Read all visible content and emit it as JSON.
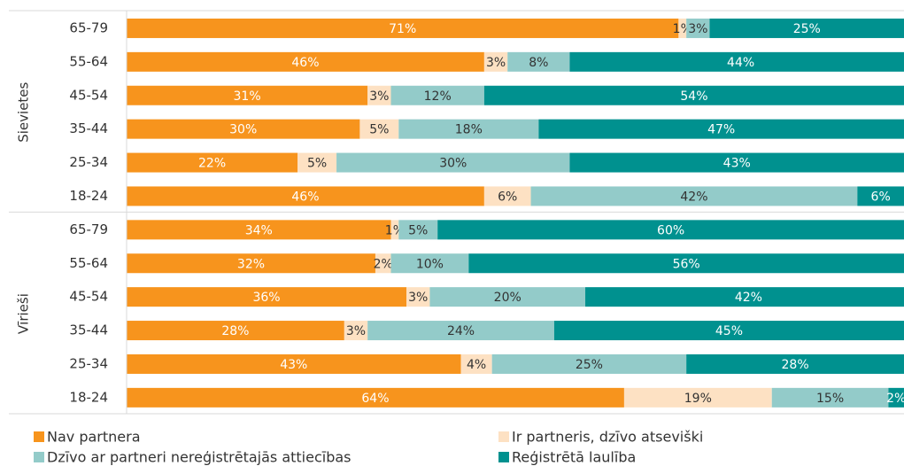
{
  "chart_data": {
    "type": "stacked-bar-horizontal",
    "groups": [
      {
        "name": "Sievietes",
        "categories": [
          "65-79",
          "55-64",
          "45-54",
          "35-44",
          "25-34",
          "18-24"
        ]
      },
      {
        "name": "Vīrieši",
        "categories": [
          "65-79",
          "55-64",
          "45-54",
          "35-44",
          "25-34",
          "18-24"
        ]
      }
    ],
    "xlim": [
      0,
      100
    ],
    "series": [
      {
        "name": "Nav partnera",
        "color": "#f7941d",
        "label_color": "#ffffff",
        "values": [
          71,
          46,
          31,
          30,
          22,
          46,
          34,
          32,
          36,
          28,
          43,
          64
        ],
        "value_labels": [
          "71%",
          "46%",
          "31%",
          "30%",
          "22%",
          "46%",
          "34%",
          "32%",
          "36%",
          "28%",
          "43%",
          "64%"
        ]
      },
      {
        "name": "Ir partneris, dzīvo atseviški",
        "color": "#fde1c3",
        "label_color": "#333333",
        "values": [
          1,
          3,
          3,
          5,
          5,
          6,
          1,
          2,
          3,
          3,
          4,
          19
        ],
        "value_labels": [
          "1%",
          "3%",
          "3%",
          "5%",
          "5%",
          "6%",
          "1%",
          "2%",
          "3%",
          "3%",
          "4%",
          "19%"
        ]
      },
      {
        "name": "Dzīvo ar partneri nereģistrētajās attiecības",
        "color": "#93cbc9",
        "label_color": "#333333",
        "values": [
          3,
          8,
          12,
          18,
          30,
          42,
          5,
          10,
          20,
          24,
          25,
          15
        ],
        "value_labels": [
          "3%",
          "8%",
          "12%",
          "18%",
          "30%",
          "42%",
          "5%",
          "10%",
          "20%",
          "24%",
          "25%",
          "15%"
        ]
      },
      {
        "name": "Reģistrētā laulība",
        "color": "#00918f",
        "label_color": "#ffffff",
        "values": [
          25,
          44,
          54,
          47,
          43,
          6,
          60,
          56,
          42,
          45,
          28,
          2
        ],
        "value_labels": [
          "25%",
          "44%",
          "54%",
          "47%",
          "43%",
          "6%",
          "60%",
          "56%",
          "42%",
          "45%",
          "28%",
          "2%"
        ]
      }
    ]
  }
}
